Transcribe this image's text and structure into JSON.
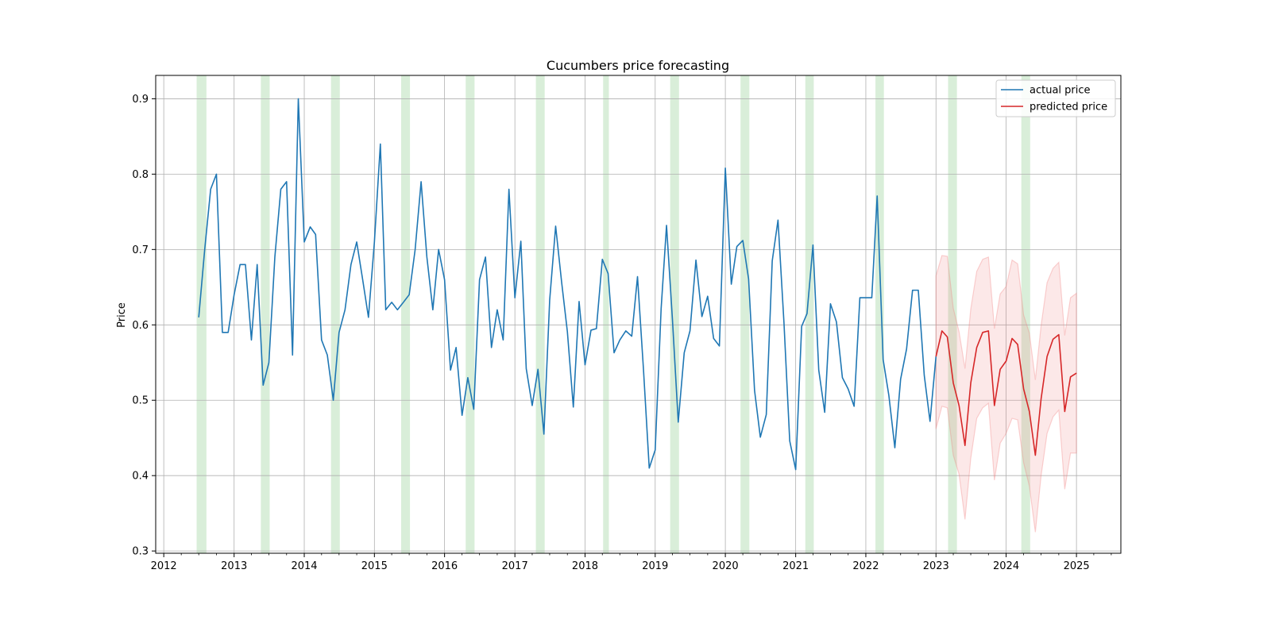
{
  "chart_data": {
    "type": "line",
    "title": "Cucumbers price forecasting",
    "xlabel": "",
    "ylabel": "Price",
    "x_type": "date",
    "xlim": [
      "2011-11-20",
      "2025-08-20"
    ],
    "ylim": [
      0.297,
      0.931
    ],
    "x_ticks": [
      "2012",
      "2013",
      "2014",
      "2015",
      "2016",
      "2017",
      "2018",
      "2019",
      "2020",
      "2021",
      "2022",
      "2023",
      "2024",
      "2025"
    ],
    "y_ticks": [
      0.3,
      0.4,
      0.5,
      0.6,
      0.7,
      0.8,
      0.9
    ],
    "y_tick_labels": [
      "0.3",
      "0.4",
      "0.5",
      "0.6",
      "0.7",
      "0.8",
      "0.9"
    ],
    "grid": true,
    "legend_position": "top-right",
    "series": [
      {
        "name": "actual price",
        "color": "#1f77b4",
        "points": [
          [
            "2012-07",
            0.61
          ],
          [
            "2012-08",
            0.7
          ],
          [
            "2012-09",
            0.78
          ],
          [
            "2012-10",
            0.8
          ],
          [
            "2012-11",
            0.59
          ],
          [
            "2012-12",
            0.59
          ],
          [
            "2013-01",
            0.64
          ],
          [
            "2013-02",
            0.68
          ],
          [
            "2013-03",
            0.68
          ],
          [
            "2013-04",
            0.58
          ],
          [
            "2013-05",
            0.68
          ],
          [
            "2013-06",
            0.52
          ],
          [
            "2013-07",
            0.55
          ],
          [
            "2013-08",
            0.69
          ],
          [
            "2013-09",
            0.78
          ],
          [
            "2013-10",
            0.79
          ],
          [
            "2013-11",
            0.56
          ],
          [
            "2013-12",
            0.9
          ],
          [
            "2014-01",
            0.71
          ],
          [
            "2014-02",
            0.73
          ],
          [
            "2014-03",
            0.72
          ],
          [
            "2014-04",
            0.58
          ],
          [
            "2014-05",
            0.56
          ],
          [
            "2014-06",
            0.5
          ],
          [
            "2014-07",
            0.59
          ],
          [
            "2014-08",
            0.62
          ],
          [
            "2014-09",
            0.68
          ],
          [
            "2014-10",
            0.71
          ],
          [
            "2014-11",
            0.66
          ],
          [
            "2014-12",
            0.61
          ],
          [
            "2015-01",
            0.71
          ],
          [
            "2015-02",
            0.84
          ],
          [
            "2015-03",
            0.62
          ],
          [
            "2015-04",
            0.63
          ],
          [
            "2015-05",
            0.62
          ],
          [
            "2015-06",
            0.63
          ],
          [
            "2015-07",
            0.64
          ],
          [
            "2015-08",
            0.7
          ],
          [
            "2015-09",
            0.79
          ],
          [
            "2015-10",
            0.69
          ],
          [
            "2015-11",
            0.62
          ],
          [
            "2015-12",
            0.7
          ],
          [
            "2016-01",
            0.66
          ],
          [
            "2016-02",
            0.54
          ],
          [
            "2016-03",
            0.57
          ],
          [
            "2016-04",
            0.48
          ],
          [
            "2016-05",
            0.53
          ],
          [
            "2016-06",
            0.488
          ],
          [
            "2016-07",
            0.66
          ],
          [
            "2016-08",
            0.69
          ],
          [
            "2016-09",
            0.57
          ],
          [
            "2016-10",
            0.62
          ],
          [
            "2016-11",
            0.58
          ],
          [
            "2016-12",
            0.78
          ],
          [
            "2017-01",
            0.636
          ],
          [
            "2017-02",
            0.711
          ],
          [
            "2017-03",
            0.542
          ],
          [
            "2017-04",
            0.493
          ],
          [
            "2017-05",
            0.541
          ],
          [
            "2017-06",
            0.455
          ],
          [
            "2017-07",
            0.633
          ],
          [
            "2017-08",
            0.731
          ],
          [
            "2017-09",
            0.657
          ],
          [
            "2017-10",
            0.591
          ],
          [
            "2017-11",
            0.491
          ],
          [
            "2017-12",
            0.631
          ],
          [
            "2018-01",
            0.547
          ],
          [
            "2018-02",
            0.593
          ],
          [
            "2018-03",
            0.595
          ],
          [
            "2018-04",
            0.687
          ],
          [
            "2018-05",
            0.668
          ],
          [
            "2018-06",
            0.563
          ],
          [
            "2018-07",
            0.58
          ],
          [
            "2018-08",
            0.592
          ],
          [
            "2018-09",
            0.585
          ],
          [
            "2018-10",
            0.664
          ],
          [
            "2018-11",
            0.541
          ],
          [
            "2018-12",
            0.41
          ],
          [
            "2019-01",
            0.434
          ],
          [
            "2019-02",
            0.622
          ],
          [
            "2019-03",
            0.732
          ],
          [
            "2019-04",
            0.606
          ],
          [
            "2019-05",
            0.471
          ],
          [
            "2019-06",
            0.563
          ],
          [
            "2019-07",
            0.592
          ],
          [
            "2019-08",
            0.686
          ],
          [
            "2019-09",
            0.611
          ],
          [
            "2019-10",
            0.638
          ],
          [
            "2019-11",
            0.582
          ],
          [
            "2019-12",
            0.572
          ],
          [
            "2020-01",
            0.808
          ],
          [
            "2020-02",
            0.654
          ],
          [
            "2020-03",
            0.704
          ],
          [
            "2020-04",
            0.712
          ],
          [
            "2020-05",
            0.661
          ],
          [
            "2020-06",
            0.513
          ],
          [
            "2020-07",
            0.451
          ],
          [
            "2020-08",
            0.481
          ],
          [
            "2020-09",
            0.685
          ],
          [
            "2020-10",
            0.739
          ],
          [
            "2020-11",
            0.603
          ],
          [
            "2020-12",
            0.446
          ],
          [
            "2021-01",
            0.408
          ],
          [
            "2021-02",
            0.598
          ],
          [
            "2021-03",
            0.615
          ],
          [
            "2021-04",
            0.706
          ],
          [
            "2021-05",
            0.54
          ],
          [
            "2021-06",
            0.484
          ],
          [
            "2021-07",
            0.628
          ],
          [
            "2021-08",
            0.604
          ],
          [
            "2021-09",
            0.53
          ],
          [
            "2021-10",
            0.515
          ],
          [
            "2021-11",
            0.492
          ],
          [
            "2021-12",
            0.636
          ],
          [
            "2022-01",
            0.636
          ],
          [
            "2022-02",
            0.636
          ],
          [
            "2022-03",
            0.771
          ],
          [
            "2022-04",
            0.554
          ],
          [
            "2022-05",
            0.506
          ],
          [
            "2022-06",
            0.437
          ],
          [
            "2022-07",
            0.528
          ],
          [
            "2022-08",
            0.568
          ],
          [
            "2022-09",
            0.646
          ],
          [
            "2022-10",
            0.646
          ],
          [
            "2022-11",
            0.533
          ],
          [
            "2022-12",
            0.472
          ],
          [
            "2023-01",
            0.558
          ]
        ]
      },
      {
        "name": "predicted price",
        "color": "#d62728",
        "band_color": "#f08080",
        "points": [
          [
            "2023-01",
            0.558,
            0.462,
            0.665
          ],
          [
            "2023-02",
            0.592,
            0.492,
            0.692
          ],
          [
            "2023-03",
            0.584,
            0.49,
            0.691
          ],
          [
            "2023-04",
            0.523,
            0.427,
            0.622
          ],
          [
            "2023-05",
            0.493,
            0.402,
            0.591
          ],
          [
            "2023-06",
            0.44,
            0.342,
            0.542
          ],
          [
            "2023-07",
            0.523,
            0.423,
            0.621
          ],
          [
            "2023-08",
            0.57,
            0.476,
            0.671
          ],
          [
            "2023-09",
            0.59,
            0.49,
            0.687
          ],
          [
            "2023-10",
            0.592,
            0.496,
            0.69
          ],
          [
            "2023-11",
            0.493,
            0.394,
            0.595
          ],
          [
            "2023-12",
            0.541,
            0.443,
            0.641
          ],
          [
            "2024-01",
            0.552,
            0.456,
            0.651
          ],
          [
            "2024-02",
            0.582,
            0.476,
            0.686
          ],
          [
            "2024-03",
            0.574,
            0.474,
            0.681
          ],
          [
            "2024-04",
            0.515,
            0.417,
            0.613
          ],
          [
            "2024-05",
            0.485,
            0.386,
            0.589
          ],
          [
            "2024-06",
            0.427,
            0.325,
            0.527
          ],
          [
            "2024-07",
            0.502,
            0.4,
            0.599
          ],
          [
            "2024-08",
            0.558,
            0.456,
            0.656
          ],
          [
            "2024-09",
            0.581,
            0.478,
            0.675
          ],
          [
            "2024-10",
            0.587,
            0.487,
            0.683
          ],
          [
            "2024-11",
            0.485,
            0.382,
            0.586
          ],
          [
            "2024-12",
            0.531,
            0.43,
            0.636
          ],
          [
            "2025-01",
            0.536,
            0.43,
            0.642
          ]
        ]
      }
    ],
    "highlight_spans": [
      [
        "2012-06-20",
        "2012-08-10"
      ],
      [
        "2013-05-20",
        "2013-07-05"
      ],
      [
        "2014-05-20",
        "2014-07-05"
      ],
      [
        "2015-05-20",
        "2015-07-05"
      ],
      [
        "2016-04-20",
        "2016-06-05"
      ],
      [
        "2017-04-20",
        "2017-06-05"
      ],
      [
        "2018-04-05",
        "2018-05-05"
      ],
      [
        "2019-03-20",
        "2019-05-05"
      ],
      [
        "2020-03-20",
        "2020-05-05"
      ],
      [
        "2021-02-20",
        "2021-04-05"
      ],
      [
        "2022-02-20",
        "2022-04-05"
      ],
      [
        "2023-03-05",
        "2023-04-20"
      ],
      [
        "2024-03-20",
        "2024-05-05"
      ]
    ],
    "highlight_color": "#2ca02c"
  }
}
